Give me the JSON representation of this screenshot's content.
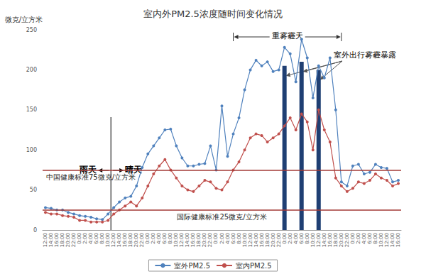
{
  "chart_data": {
    "type": "line",
    "title": "室内外PM2.5浓度随时间变化情况",
    "y_label": "微克/立方米",
    "categories": [
      "12:00",
      "14:00",
      "16:00",
      "18:00",
      "20:00",
      "22:00",
      "0:00",
      "2:00",
      "4:00",
      "6:00",
      "8:00",
      "10:00",
      "12:00",
      "14:00",
      "16:00",
      "18:00",
      "20:00",
      "22:00",
      "0:00",
      "2:00",
      "4:00",
      "6:00",
      "8:00",
      "10:00",
      "12:00",
      "14:00",
      "16:00",
      "18:00",
      "20:00",
      "22:00",
      "0:00",
      "2:00",
      "4:00",
      "6:00",
      "8:00",
      "10:00",
      "12:00",
      "14:00",
      "16:00",
      "18:00",
      "20:00",
      "22:00",
      "0:00",
      "2:00",
      "4:00",
      "6:00",
      "8:00",
      "10:00",
      "12:00",
      "14:00",
      "16:00",
      "18:00",
      "20:00",
      "22:00",
      "0:00",
      "2:00",
      "4:00",
      "6:00",
      "8:00",
      "10:00",
      "12:00",
      "14:00",
      "16:00"
    ],
    "series": [
      {
        "name": "室外PM2.5",
        "type": "line",
        "color": "#4f81bd",
        "marker": "circle",
        "values": [
          28,
          27,
          25,
          25,
          22,
          20,
          18,
          17,
          16,
          14,
          13,
          20,
          28,
          35,
          40,
          42,
          55,
          78,
          95,
          105,
          115,
          125,
          126,
          105,
          90,
          80,
          80,
          82,
          83,
          105,
          75,
          155,
          92,
          120,
          140,
          175,
          200,
          212,
          205,
          210,
          198,
          200,
          228,
          220,
          185,
          238,
          215,
          165,
          205,
          190,
          215,
          150,
          60,
          55,
          80,
          82,
          70,
          72,
          82,
          78,
          77,
          60,
          62
        ]
      },
      {
        "name": "室内PM2.5",
        "type": "line",
        "color": "#c0504d",
        "marker": "circle",
        "values": [
          22,
          20,
          20,
          18,
          17,
          16,
          12,
          12,
          10,
          10,
          10,
          12,
          20,
          25,
          30,
          35,
          30,
          40,
          55,
          70,
          80,
          88,
          75,
          65,
          55,
          50,
          48,
          55,
          62,
          60,
          52,
          50,
          60,
          75,
          85,
          100,
          115,
          120,
          118,
          110,
          115,
          120,
          130,
          140,
          125,
          145,
          135,
          100,
          150,
          125,
          110,
          65,
          55,
          48,
          52,
          60,
          58,
          62,
          70,
          65,
          62,
          55,
          58
        ]
      },
      {
        "name": "室外出行雾霾暴露",
        "type": "bar",
        "color": "#1f3f73",
        "values": [
          null,
          null,
          null,
          null,
          null,
          null,
          null,
          null,
          null,
          null,
          null,
          null,
          null,
          null,
          null,
          null,
          null,
          null,
          null,
          null,
          null,
          null,
          null,
          null,
          null,
          null,
          null,
          null,
          null,
          null,
          null,
          null,
          null,
          null,
          null,
          null,
          null,
          null,
          null,
          null,
          null,
          null,
          205,
          null,
          null,
          210,
          null,
          null,
          200,
          null,
          null,
          null,
          null,
          null,
          null,
          null,
          null,
          null,
          null,
          null,
          null,
          null,
          null
        ]
      }
    ],
    "ylim": [
      0,
      250
    ],
    "yticks": [
      0,
      50,
      100,
      150,
      200,
      250
    ],
    "grid": false,
    "legend": "bottom",
    "reference_lines": [
      {
        "value": 75,
        "label": "中国健康标准75微克/立方米",
        "color": "#a33a36"
      },
      {
        "value": 25,
        "label": "国际健康标准25微克/立方米",
        "color": "#a33a36"
      }
    ],
    "annotations": [
      "雨天",
      "晴天",
      "重雾霾天"
    ]
  }
}
